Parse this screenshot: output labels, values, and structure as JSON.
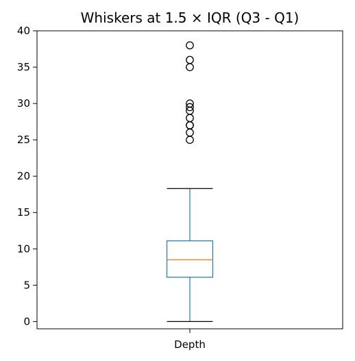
{
  "chart_data": {
    "type": "box",
    "title": "Whiskers at 1.5 × IQR (Q3 - Q1)",
    "categories": [
      "Depth"
    ],
    "xlabel": "",
    "ylabel": "",
    "ylim": [
      -1,
      40
    ],
    "yticks": [
      0,
      5,
      10,
      15,
      20,
      25,
      30,
      35,
      40
    ],
    "grid": false,
    "colors": {
      "box": "#1f77b4",
      "median": "#ff7f0e",
      "whisker": "#000000",
      "flier": "#000000"
    },
    "boxes": [
      {
        "category": "Depth",
        "whisker_low": 0.0,
        "q1": 6.1,
        "median": 8.5,
        "q3": 11.1,
        "whisker_high": 18.3,
        "fliers": [
          25.0,
          26.0,
          27.0,
          27.0,
          28.0,
          29.0,
          29.5,
          30.0,
          35.0,
          36.0,
          38.0
        ]
      }
    ]
  }
}
